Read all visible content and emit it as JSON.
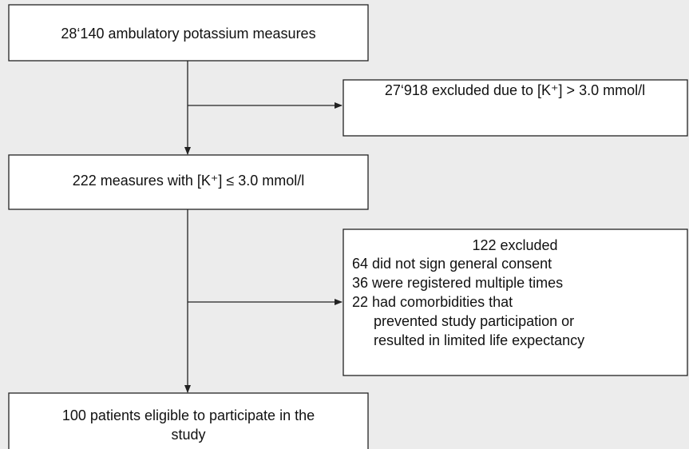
{
  "nodes": [
    {
      "label": "28‘140 ambulatory potassium measures"
    },
    {
      "label": "27‘918 excluded due to [K⁺] > 3.0 mmol/l"
    },
    {
      "label": "222 measures with [K⁺] ≤ 3.0 mmol/l"
    },
    {
      "title": "122 excluded",
      "lines": [
        "64 did not sign general consent",
        "36 were registered multiple times",
        "22 had comorbidities that",
        "prevented study participation or",
        "resulted in limited life expectancy"
      ]
    },
    {
      "lines": [
        "100 patients eligible to participate in the",
        "study"
      ]
    }
  ]
}
